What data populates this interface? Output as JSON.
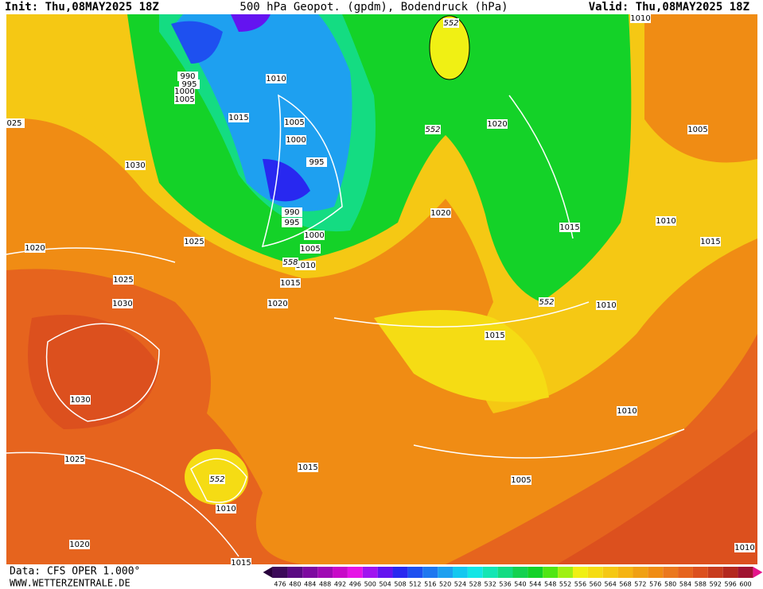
{
  "header": {
    "init": "Init: Thu,08MAY2025 18Z",
    "title": "500 hPa Geopot. (gpdm), Bodendruck (hPa)",
    "valid": "Valid: Thu,08MAY2025 18Z"
  },
  "pressure_labels": [
    990,
    995,
    1000,
    1005,
    1010,
    1015,
    1005,
    1000,
    995,
    990,
    995,
    1000,
    1005,
    1010,
    1015,
    1020,
    1020,
    1020,
    1005,
    1010,
    1015,
    1015,
    1010,
    1015,
    1010,
    1005,
    1010,
    1010,
    1030,
    1025,
    1020,
    1025,
    1030,
    1030,
    1025,
    1020,
    1015,
    1015,
    1010,
    "025"
  ],
  "geopotential_labels": [
    552,
    552,
    552,
    558,
    552
  ],
  "colorbar": {
    "ticks": [
      476,
      480,
      484,
      488,
      492,
      496,
      500,
      504,
      508,
      512,
      516,
      520,
      524,
      528,
      532,
      536,
      540,
      544,
      548,
      552,
      556,
      560,
      564,
      568,
      572,
      576,
      580,
      584,
      588,
      592,
      596,
      600
    ],
    "colors": [
      "#3c0a5a",
      "#5a0a82",
      "#7d0aa0",
      "#a00ab4",
      "#c80ac8",
      "#e614e6",
      "#a014f0",
      "#6414f0",
      "#2828f0",
      "#1e50f0",
      "#1e78f0",
      "#1ea0f0",
      "#14c8f0",
      "#14e6e6",
      "#14e6b4",
      "#14dc82",
      "#14d250",
      "#14d228",
      "#50e614",
      "#a0f014",
      "#f0f014",
      "#f5dc14",
      "#f5c814",
      "#f5b414",
      "#f0a014",
      "#f08c14",
      "#eb781e",
      "#e6641e",
      "#dc501e",
      "#c83c1e",
      "#b4281e",
      "#a01432"
    ]
  },
  "footer": {
    "data": "Data: CFS OPER 1.000°",
    "site": "WWW.WETTERZENTRALE.DE"
  }
}
